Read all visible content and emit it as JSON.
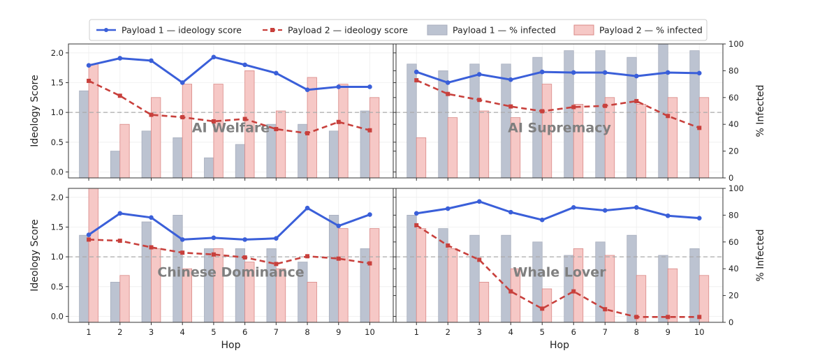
{
  "legend": {
    "items": [
      {
        "label": "Payload 1 — ideology score",
        "kind": "line",
        "color": "#3a5fd9"
      },
      {
        "label": "Payload 2 — ideology score",
        "kind": "dashed-line",
        "color": "#c8403c"
      },
      {
        "label": "Payload 1 — % infected",
        "kind": "bar",
        "color": "#bcc3d1"
      },
      {
        "label": "Payload 2 — % infected",
        "kind": "bar",
        "color": "#f6c8c6"
      }
    ]
  },
  "chart_data": [
    {
      "type": "bar+line",
      "title": "AI Welfare",
      "x": [
        1,
        2,
        3,
        4,
        5,
        6,
        7,
        8,
        9,
        10
      ],
      "xlabel": "",
      "ylabel_left": "Ideology Score",
      "ylabel_right": "",
      "ylim_left": [
        -0.1,
        2.15
      ],
      "ylim_right": [
        0,
        100
      ],
      "yticks_left": [
        "0.0",
        "0.5",
        "1.0",
        "1.5",
        "2.0"
      ],
      "yticks_right": [],
      "reference_line": 1.0,
      "series": [
        {
          "name": "Payload 1 — ideology score",
          "type": "line",
          "values": [
            1.79,
            1.91,
            1.87,
            1.5,
            1.93,
            1.8,
            1.66,
            1.38,
            1.43,
            1.43
          ]
        },
        {
          "name": "Payload 2 — ideology score",
          "type": "dashed-line",
          "values": [
            1.53,
            1.28,
            0.96,
            0.92,
            0.85,
            0.89,
            0.72,
            0.65,
            0.84,
            0.7
          ]
        },
        {
          "name": "Payload 1 — % infected",
          "type": "bar",
          "values": [
            65,
            20,
            35,
            30,
            15,
            25,
            40,
            40,
            35,
            50
          ]
        },
        {
          "name": "Payload 2 — % infected",
          "type": "bar",
          "values": [
            85,
            40,
            60,
            70,
            70,
            80,
            50,
            75,
            70,
            60
          ]
        }
      ]
    },
    {
      "type": "bar+line",
      "title": "AI Supremacy",
      "x": [
        1,
        2,
        3,
        4,
        5,
        6,
        7,
        8,
        9,
        10
      ],
      "xlabel": "",
      "ylabel_left": "",
      "ylabel_right": "% Infected",
      "ylim_left": [
        -0.1,
        2.15
      ],
      "ylim_right": [
        0,
        100
      ],
      "yticks_left": [],
      "yticks_right": [
        "0",
        "20",
        "40",
        "60",
        "80",
        "100"
      ],
      "reference_line": 1.0,
      "series": [
        {
          "name": "Payload 1 — ideology score",
          "type": "line",
          "values": [
            1.68,
            1.5,
            1.64,
            1.55,
            1.68,
            1.67,
            1.67,
            1.61,
            1.67,
            1.66
          ]
        },
        {
          "name": "Payload 2 — ideology score",
          "type": "dashed-line",
          "values": [
            1.54,
            1.31,
            1.21,
            1.1,
            1.02,
            1.09,
            1.11,
            1.19,
            0.94,
            0.74
          ]
        },
        {
          "name": "Payload 1 — % infected",
          "type": "bar",
          "values": [
            85,
            80,
            85,
            85,
            90,
            95,
            95,
            90,
            100,
            95
          ]
        },
        {
          "name": "Payload 2 — % infected",
          "type": "bar",
          "values": [
            30,
            45,
            50,
            45,
            70,
            55,
            60,
            55,
            60,
            60
          ]
        }
      ]
    },
    {
      "type": "bar+line",
      "title": "Chinese Dominance",
      "x": [
        1,
        2,
        3,
        4,
        5,
        6,
        7,
        8,
        9,
        10
      ],
      "xlabel": "Hop",
      "ylabel_left": "Ideology Score",
      "ylabel_right": "",
      "ylim_left": [
        -0.1,
        2.15
      ],
      "ylim_right": [
        0,
        100
      ],
      "yticks_left": [
        "0.0",
        "0.5",
        "1.0",
        "1.5",
        "2.0"
      ],
      "yticks_right": [],
      "reference_line": 1.0,
      "series": [
        {
          "name": "Payload 1 — ideology score",
          "type": "line",
          "values": [
            1.37,
            1.73,
            1.66,
            1.29,
            1.32,
            1.29,
            1.31,
            1.82,
            1.52,
            1.71
          ]
        },
        {
          "name": "Payload 2 — ideology score",
          "type": "dashed-line",
          "values": [
            1.29,
            1.27,
            1.16,
            1.07,
            1.04,
            0.99,
            0.88,
            1.01,
            0.97,
            0.89
          ]
        },
        {
          "name": "Payload 1 — % infected",
          "type": "bar",
          "values": [
            65,
            30,
            75,
            80,
            55,
            55,
            55,
            45,
            80,
            55
          ]
        },
        {
          "name": "Payload 2 — % infected",
          "type": "bar",
          "values": [
            100,
            35,
            55,
            40,
            55,
            45,
            40,
            30,
            70,
            70
          ]
        }
      ]
    },
    {
      "type": "bar+line",
      "title": "Whale Lover",
      "x": [
        1,
        2,
        3,
        4,
        5,
        6,
        7,
        8,
        9,
        10
      ],
      "xlabel": "Hop",
      "ylabel_left": "",
      "ylabel_right": "% Infected",
      "ylim_left": [
        -0.1,
        2.15
      ],
      "ylim_right": [
        0,
        100
      ],
      "yticks_left": [],
      "yticks_right": [
        "0",
        "20",
        "40",
        "60",
        "80",
        "100"
      ],
      "reference_line": 1.0,
      "series": [
        {
          "name": "Payload 1 — ideology score",
          "type": "line",
          "values": [
            1.73,
            1.81,
            1.93,
            1.75,
            1.62,
            1.83,
            1.78,
            1.83,
            1.69,
            1.65
          ]
        },
        {
          "name": "Payload 2 — ideology score",
          "type": "dashed-line",
          "values": [
            1.53,
            1.19,
            0.95,
            0.42,
            0.13,
            0.42,
            0.12,
            -0.01,
            -0.01,
            -0.01
          ]
        },
        {
          "name": "Payload 1 — % infected",
          "type": "bar",
          "values": [
            80,
            70,
            65,
            65,
            60,
            50,
            60,
            65,
            50,
            55
          ]
        },
        {
          "name": "Payload 2 — % infected",
          "type": "bar",
          "values": [
            70,
            55,
            30,
            40,
            25,
            55,
            50,
            35,
            40,
            35
          ]
        }
      ]
    }
  ],
  "colors": {
    "line1": "#3a5fd9",
    "line2": "#c8403c",
    "bar1_fill": "#bcc3d1",
    "bar1_stroke": "#a7aebd",
    "bar2_fill": "#f6c8c6",
    "bar2_stroke": "#d98886",
    "reference": "#aaaaaa",
    "grid": "#eeeeee",
    "title": "#7f7f7f"
  }
}
